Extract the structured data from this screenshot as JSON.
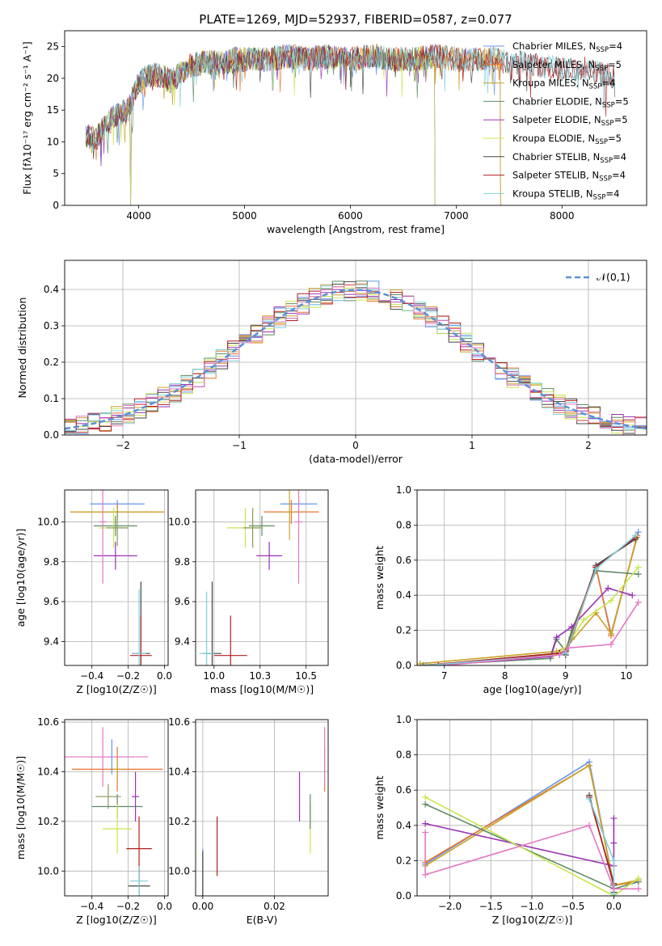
{
  "title": "PLATE=1269, MJD=52937, FIBERID=0587, z=0.077",
  "models": [
    {
      "name": "Chabrier MILES",
      "n": "4",
      "color": "#6495ed"
    },
    {
      "name": "Salpeter MILES",
      "n": "5",
      "color": "#e8732c"
    },
    {
      "name": "Kroupa MILES",
      "n": "4",
      "color": "#c9a227"
    },
    {
      "name": "Chabrier ELODIE",
      "n": "5",
      "color": "#5f8a68"
    },
    {
      "name": "Salpeter ELODIE",
      "n": "5",
      "color": "#9a32b4"
    },
    {
      "name": "Kroupa ELODIE",
      "n": "5",
      "color": "#c8e650"
    },
    {
      "name": "Chabrier STELIB",
      "n": "4",
      "color": "#444444"
    },
    {
      "name": "Salpeter STELIB",
      "n": "4",
      "color": "#b41e1e"
    },
    {
      "name": "Kroupa STELIB",
      "n": "4",
      "color": "#7fd2dc"
    }
  ],
  "chart_data": [
    {
      "id": "spectrum",
      "type": "line",
      "xlabel": "wavelength [Angstrom, rest frame]",
      "ylabel": "Flux [fλ10⁻¹⁷ erg cm⁻² s⁻¹ A⁻¹]",
      "xlim": [
        3300,
        8800
      ],
      "ylim": [
        0,
        27.5
      ],
      "xticks": [
        4000,
        5000,
        6000,
        7000,
        8000
      ],
      "yticks": [
        0,
        5,
        10,
        15,
        20,
        25
      ],
      "envelope": {
        "x": [
          3500,
          3600,
          3700,
          3800,
          3900,
          4000,
          4100,
          4200,
          4300,
          4400,
          4500,
          4600,
          4700,
          4800,
          4900,
          5000,
          5200,
          5400,
          5600,
          5800,
          6000,
          6200,
          6400,
          6600,
          6800,
          7000,
          7200,
          7400,
          7600,
          7800,
          8000,
          8200,
          8400
        ],
        "y": [
          11,
          10.5,
          13,
          14.5,
          15,
          19.5,
          20.5,
          20.5,
          19.5,
          21,
          22,
          22.5,
          22.5,
          22.5,
          23,
          23,
          23,
          23.5,
          23,
          23.5,
          23,
          23.5,
          23,
          23,
          23.5,
          23,
          23,
          23,
          22.5,
          22,
          21.5,
          21.5,
          20.5
        ]
      },
      "ends": {
        "MILES": 7420,
        "ELODIE": 6800,
        "STELIB": 8500
      },
      "drop": {
        "x": [
          3920,
          6800,
          7420
        ]
      }
    },
    {
      "id": "residuals",
      "type": "histogram",
      "xlabel": "(data-model)/error",
      "ylabel": "Normed distribution",
      "xlim": [
        -2.5,
        2.5
      ],
      "ylim": [
        0,
        0.48
      ],
      "xticks": [
        -2,
        -1,
        0,
        1,
        2
      ],
      "yticks": [
        0.0,
        0.1,
        0.2,
        0.3,
        0.4
      ],
      "bin_width": 0.1,
      "legend": "𝒩(0,1)",
      "gaussian": {
        "mean": 0,
        "sigma": 1
      }
    },
    {
      "id": "age_vs_Z",
      "type": "errorbar",
      "xlabel": "Z [log10(Z/Z☉)]",
      "ylabel": "age  [log10(age/yr)]",
      "xlim": [
        -0.55,
        0.02
      ],
      "ylim": [
        9.28,
        10.16
      ],
      "xticks": [
        -0.4,
        -0.2,
        0.0
      ],
      "yticks": [
        9.4,
        9.6,
        9.8,
        10.0
      ],
      "points": [
        {
          "x": -0.26,
          "y": 10.09,
          "xerr": 0.15,
          "yerr": 0.02,
          "color": "#6495ed"
        },
        {
          "x": -0.26,
          "y": 10.05,
          "xerr": 0.26,
          "yerr": 0.04,
          "color": "#e8732c"
        },
        {
          "x": -0.26,
          "y": 10.05,
          "xerr": 0.26,
          "yerr": 0.02,
          "color": "#c9a227"
        },
        {
          "x": -0.27,
          "y": 9.98,
          "xerr": 0.12,
          "yerr": 0.05,
          "color": "#5f8a68"
        },
        {
          "x": -0.27,
          "y": 9.83,
          "xerr": 0.12,
          "yerr": 0.07,
          "color": "#9a32b4"
        },
        {
          "x": -0.28,
          "y": 9.97,
          "xerr": 0.08,
          "yerr": 0.1,
          "color": "#c8e650"
        },
        {
          "x": -0.13,
          "y": 9.34,
          "xerr": 0.05,
          "yerr": 0.36,
          "color": "#444444"
        },
        {
          "x": -0.13,
          "y": 9.33,
          "xerr": 0.06,
          "yerr": 0.2,
          "color": "#b41e1e"
        },
        {
          "x": -0.14,
          "y": 9.34,
          "xerr": 0.04,
          "yerr": 0.32,
          "color": "#7fd2dc"
        },
        {
          "x": -0.34,
          "y": 10.0,
          "xerr": 0.02,
          "yerr": 0.31,
          "color": "#e377c2"
        },
        {
          "x": -0.26,
          "y": 9.97,
          "xerr": 0.06,
          "yerr": 0.09,
          "color": "#8a9a5b"
        }
      ]
    },
    {
      "id": "age_vs_mass",
      "type": "errorbar",
      "xlabel": "mass [log10(M/M☉)]",
      "ylabel": "",
      "xlim": [
        9.9,
        10.62
      ],
      "ylim": [
        9.28,
        10.16
      ],
      "xticks": [
        10.0,
        10.25,
        10.5
      ],
      "yticks": [
        9.4,
        9.6,
        9.8,
        10.0
      ],
      "points": [
        {
          "x": 10.46,
          "y": 10.09,
          "xerr": 0.1,
          "yerr": 0.02,
          "color": "#6495ed"
        },
        {
          "x": 10.42,
          "y": 10.05,
          "xerr": 0.15,
          "yerr": 0.06,
          "color": "#e8732c"
        },
        {
          "x": 10.41,
          "y": 10.05,
          "xerr": 0.03,
          "yerr": 0.14,
          "color": "#c9a227"
        },
        {
          "x": 10.26,
          "y": 9.98,
          "xerr": 0.07,
          "yerr": 0.05,
          "color": "#5f8a68"
        },
        {
          "x": 10.3,
          "y": 9.83,
          "xerr": 0.07,
          "yerr": 0.07,
          "color": "#9a32b4"
        },
        {
          "x": 10.17,
          "y": 9.97,
          "xerr": 0.1,
          "yerr": 0.1,
          "color": "#c8e650"
        },
        {
          "x": 9.99,
          "y": 9.34,
          "xerr": 0.05,
          "yerr": 0.36,
          "color": "#444444"
        },
        {
          "x": 10.09,
          "y": 9.33,
          "xerr": 0.09,
          "yerr": 0.2,
          "color": "#b41e1e"
        },
        {
          "x": 9.96,
          "y": 9.34,
          "xerr": 0.04,
          "yerr": 0.31,
          "color": "#7fd2dc"
        },
        {
          "x": 10.46,
          "y": 10.0,
          "xerr": 0.02,
          "yerr": 0.31,
          "color": "#e377c2"
        },
        {
          "x": 10.21,
          "y": 9.97,
          "xerr": 0.05,
          "yerr": 0.1,
          "color": "#8a9a5b"
        }
      ]
    },
    {
      "id": "massweight_vs_age",
      "type": "line",
      "xlabel": "age  [log10(age/yr)]",
      "ylabel": "mass weight",
      "xlim": [
        6.55,
        10.35
      ],
      "ylim": [
        0,
        1.0
      ],
      "xticks": [
        7,
        8,
        9,
        10
      ],
      "yticks": [
        0.0,
        0.2,
        0.4,
        0.6,
        0.8,
        1.0
      ],
      "series": [
        {
          "color": "#6495ed",
          "x": [
            6.6,
            8.8,
            9.0,
            9.1,
            9.5,
            9.75,
            10.2
          ],
          "y": [
            0.0,
            0.06,
            0.1,
            0.16,
            0.56,
            0.18,
            0.76
          ]
        },
        {
          "color": "#e8732c",
          "x": [
            6.6,
            8.8,
            9.0,
            9.1,
            9.5,
            9.75,
            10.18
          ],
          "y": [
            0.0,
            0.06,
            0.08,
            0.15,
            0.56,
            0.17,
            0.74
          ]
        },
        {
          "color": "#c9a227",
          "x": [
            6.6,
            8.85,
            9.0,
            9.5,
            9.75,
            10.18
          ],
          "y": [
            0.01,
            0.08,
            0.1,
            0.3,
            0.18,
            0.73
          ]
        },
        {
          "color": "#5f8a68",
          "x": [
            6.65,
            8.75,
            8.85,
            9.0,
            9.1,
            9.5,
            10.2
          ],
          "y": [
            0.0,
            0.04,
            0.15,
            0.08,
            0.2,
            0.54,
            0.52
          ]
        },
        {
          "color": "#9a32b4",
          "x": [
            6.9,
            8.75,
            8.85,
            9.1,
            9.7,
            10.1
          ],
          "y": [
            0.0,
            0.05,
            0.16,
            0.22,
            0.44,
            0.4
          ]
        },
        {
          "color": "#c8e650",
          "x": [
            6.7,
            8.8,
            9.0,
            9.3,
            9.75,
            10.2
          ],
          "y": [
            0.0,
            0.06,
            0.1,
            0.26,
            0.37,
            0.56
          ]
        },
        {
          "color": "#444444",
          "x": [
            6.7,
            8.9,
            9.0,
            9.5,
            10.15
          ],
          "y": [
            0.0,
            0.07,
            0.06,
            0.57,
            0.72
          ]
        },
        {
          "color": "#b41e1e",
          "x": [
            6.7,
            8.9,
            9.0,
            9.5,
            10.15
          ],
          "y": [
            0.0,
            0.07,
            0.08,
            0.56,
            0.73
          ]
        },
        {
          "color": "#7fd2dc",
          "x": [
            6.7,
            8.9,
            9.0,
            9.5,
            10.15
          ],
          "y": [
            0.0,
            0.06,
            0.07,
            0.55,
            0.74
          ]
        },
        {
          "color": "#e377c2",
          "x": [
            7.0,
            8.9,
            9.05,
            9.75,
            10.2
          ],
          "y": [
            0.0,
            0.06,
            0.1,
            0.12,
            0.36
          ]
        }
      ]
    },
    {
      "id": "mass_vs_Z",
      "type": "errorbar",
      "xlabel": "Z [log10(Z/Z☉)]",
      "ylabel": "mass [log10(M/M☉)]",
      "xlim": [
        -0.55,
        0.02
      ],
      "ylim": [
        9.9,
        10.61
      ],
      "xticks": [
        -0.4,
        -0.2,
        0.0
      ],
      "yticks": [
        10.0,
        10.2,
        10.4,
        10.6
      ],
      "points": [
        {
          "x": -0.29,
          "y": 10.46,
          "xerr": 0.12,
          "yerr": 0.07,
          "color": "#6495ed"
        },
        {
          "x": -0.26,
          "y": 10.41,
          "xerr": 0.25,
          "yerr": 0.09,
          "color": "#e8732c"
        },
        {
          "x": -0.26,
          "y": 10.41,
          "xerr": 0.02,
          "yerr": 0.04,
          "color": "#c9a227"
        },
        {
          "x": -0.26,
          "y": 10.26,
          "xerr": 0.14,
          "yerr": 0.05,
          "color": "#5f8a68"
        },
        {
          "x": -0.16,
          "y": 10.3,
          "xerr": 0.02,
          "yerr": 0.1,
          "color": "#9a32b4"
        },
        {
          "x": -0.26,
          "y": 10.17,
          "xerr": 0.08,
          "yerr": 0.1,
          "color": "#c8e650"
        },
        {
          "x": -0.14,
          "y": 9.94,
          "xerr": 0.06,
          "yerr": 0.08,
          "color": "#444444"
        },
        {
          "x": -0.14,
          "y": 10.09,
          "xerr": 0.07,
          "yerr": 0.13,
          "color": "#b41e1e"
        },
        {
          "x": -0.14,
          "y": 9.96,
          "xerr": 0.05,
          "yerr": 0.06,
          "color": "#7fd2dc"
        },
        {
          "x": -0.34,
          "y": 10.46,
          "xerr": 0.25,
          "yerr": 0.12,
          "color": "#e377c2"
        },
        {
          "x": -0.31,
          "y": 10.3,
          "xerr": 0.07,
          "yerr": 0.05,
          "color": "#8a9a5b"
        }
      ]
    },
    {
      "id": "mass_vs_ebv",
      "type": "errorbar",
      "xlabel": "E(B-V)",
      "ylabel": "",
      "xlim": [
        -0.002,
        0.035
      ],
      "ylim": [
        9.9,
        10.61
      ],
      "xticks": [
        0.0,
        0.02
      ],
      "yticks": [
        10.0,
        10.2,
        10.4,
        10.6
      ],
      "points": [
        {
          "x": 0.0,
          "y": 9.99,
          "xerr": 0,
          "yerr": 0.1,
          "color": "#6495ed"
        },
        {
          "x": 0.0,
          "y": 9.97,
          "xerr": 0,
          "yerr": 0.06,
          "color": "#7fd2dc"
        },
        {
          "x": 0.0,
          "y": 9.99,
          "xerr": 0,
          "yerr": 0.09,
          "color": "#444444"
        },
        {
          "x": 0.004,
          "y": 10.1,
          "xerr": 0,
          "yerr": 0.12,
          "color": "#b41e1e"
        },
        {
          "x": 0.027,
          "y": 10.3,
          "xerr": 0,
          "yerr": 0.1,
          "color": "#9a32b4"
        },
        {
          "x": 0.03,
          "y": 10.17,
          "xerr": 0,
          "yerr": 0.1,
          "color": "#c8e650"
        },
        {
          "x": 0.03,
          "y": 10.24,
          "xerr": 0,
          "yerr": 0.07,
          "color": "#5f8a68"
        },
        {
          "x": 0.034,
          "y": 10.41,
          "xerr": 0,
          "yerr": 0.09,
          "color": "#e8732c"
        },
        {
          "x": 0.034,
          "y": 10.46,
          "xerr": 0,
          "yerr": 0.12,
          "color": "#e377c2"
        }
      ]
    },
    {
      "id": "massweight_vs_Z",
      "type": "line",
      "xlabel": "Z [log10(Z/Z☉)]",
      "ylabel": "mass weight",
      "xlim": [
        -2.4,
        0.41
      ],
      "ylim": [
        0,
        1.0
      ],
      "xticks": [
        -2.0,
        -1.5,
        -1.0,
        -0.5,
        0.0
      ],
      "yticks": [
        0.0,
        0.2,
        0.4,
        0.6,
        0.8,
        1.0
      ],
      "series": [
        {
          "color": "#6495ed",
          "x": [
            -2.3,
            -0.3,
            0.0,
            0.3
          ],
          "y": [
            0.18,
            0.76,
            0.06,
            0.08
          ]
        },
        {
          "color": "#e8732c",
          "x": [
            -2.3,
            -0.3,
            0.0,
            0.3
          ],
          "y": [
            0.19,
            0.74,
            0.06,
            0.08
          ]
        },
        {
          "color": "#c9a227",
          "x": [
            -2.3,
            -0.3,
            0.0,
            0.3
          ],
          "y": [
            0.17,
            0.74,
            0.06,
            0.09
          ]
        },
        {
          "color": "#5f8a68",
          "x": [
            -2.3,
            0.0,
            0.3
          ],
          "y": [
            0.52,
            0.04,
            0.08
          ]
        },
        {
          "color": "#9a32b4",
          "x": [
            -2.3,
            0.0,
            0.0,
            0.0
          ],
          "y": [
            0.41,
            0.17,
            0.44,
            0.3
          ]
        },
        {
          "color": "#c8e650",
          "x": [
            -2.3,
            0.0,
            0.3
          ],
          "y": [
            0.56,
            0.0,
            0.1
          ]
        },
        {
          "color": "#444444",
          "x": [
            -0.3,
            0.0,
            0.0
          ],
          "y": [
            0.57,
            0.06,
            0.02
          ]
        },
        {
          "color": "#b41e1e",
          "x": [
            -0.3,
            0.0
          ],
          "y": [
            0.56,
            0.07
          ]
        },
        {
          "color": "#7fd2dc",
          "x": [
            -0.3,
            0.0,
            0.0
          ],
          "y": [
            0.55,
            0.2,
            0.01
          ]
        },
        {
          "color": "#e377c2",
          "x": [
            -2.3,
            -2.3,
            -0.3,
            0.0,
            0.3
          ],
          "y": [
            0.36,
            0.12,
            0.4,
            0.04,
            0.04
          ]
        }
      ]
    }
  ]
}
